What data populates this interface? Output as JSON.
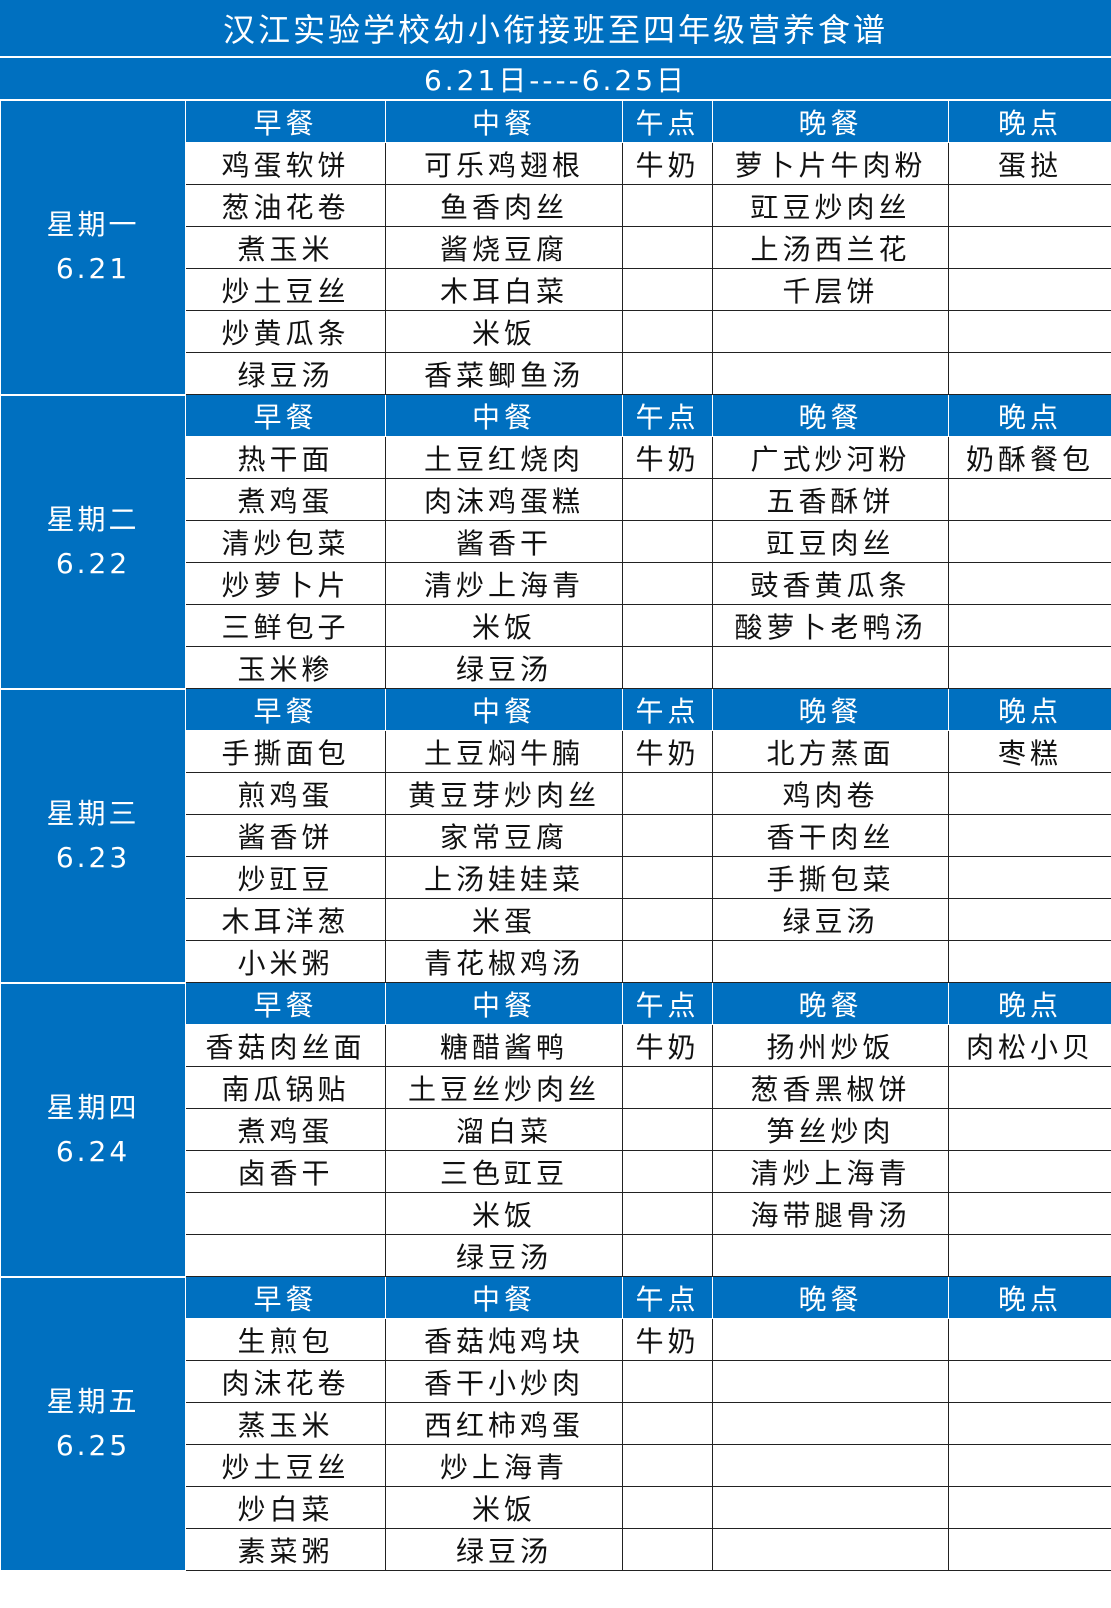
{
  "title": "汉江实验学校幼小衔接班至四年级营养食谱",
  "date_range": "6.21日----6.25日",
  "columns": [
    "早餐",
    "中餐",
    "午点",
    "晚餐",
    "晚点"
  ],
  "colors": {
    "header_blue": "#0070C0"
  },
  "days": [
    {
      "name": "星期一",
      "date": "6.21",
      "rows": [
        [
          "鸡蛋软饼",
          "可乐鸡翅根",
          "牛奶",
          "萝卜片牛肉粉",
          "蛋挞"
        ],
        [
          "葱油花卷",
          "鱼香肉丝",
          "",
          "豇豆炒肉丝",
          ""
        ],
        [
          "煮玉米",
          "酱烧豆腐",
          "",
          "上汤西兰花",
          ""
        ],
        [
          "炒土豆丝",
          "木耳白菜",
          "",
          "千层饼",
          ""
        ],
        [
          "炒黄瓜条",
          "米饭",
          "",
          "",
          ""
        ],
        [
          "绿豆汤",
          "香菜鲫鱼汤",
          "",
          "",
          ""
        ]
      ]
    },
    {
      "name": "星期二",
      "date": "6.22",
      "rows": [
        [
          "热干面",
          "土豆红烧肉",
          "牛奶",
          "广式炒河粉",
          "奶酥餐包"
        ],
        [
          "煮鸡蛋",
          "肉沫鸡蛋糕",
          "",
          "五香酥饼",
          ""
        ],
        [
          "清炒包菜",
          "酱香干",
          "",
          "豇豆肉丝",
          ""
        ],
        [
          "炒萝卜片",
          "清炒上海青",
          "",
          "豉香黄瓜条",
          ""
        ],
        [
          "三鲜包子",
          "米饭",
          "",
          "酸萝卜老鸭汤",
          ""
        ],
        [
          "玉米糁",
          "绿豆汤",
          "",
          "",
          ""
        ]
      ]
    },
    {
      "name": "星期三",
      "date": "6.23",
      "rows": [
        [
          "手撕面包",
          "土豆焖牛腩",
          "牛奶",
          "北方蒸面",
          "枣糕"
        ],
        [
          "煎鸡蛋",
          "黄豆芽炒肉丝",
          "",
          "鸡肉卷",
          ""
        ],
        [
          "酱香饼",
          "家常豆腐",
          "",
          "香干肉丝",
          ""
        ],
        [
          "炒豇豆",
          "上汤娃娃菜",
          "",
          "手撕包菜",
          ""
        ],
        [
          "木耳洋葱",
          "米蛋",
          "",
          "绿豆汤",
          ""
        ],
        [
          "小米粥",
          "青花椒鸡汤",
          "",
          "",
          ""
        ]
      ]
    },
    {
      "name": "星期四",
      "date": "6.24",
      "rows": [
        [
          "香菇肉丝面",
          "糖醋酱鸭",
          "牛奶",
          "扬州炒饭",
          "肉松小贝"
        ],
        [
          "南瓜锅贴",
          "土豆丝炒肉丝",
          "",
          "葱香黑椒饼",
          ""
        ],
        [
          "煮鸡蛋",
          "溜白菜",
          "",
          "笋丝炒肉",
          ""
        ],
        [
          "卤香干",
          "三色豇豆",
          "",
          "清炒上海青",
          ""
        ],
        [
          "",
          "米饭",
          "",
          "海带腿骨汤",
          ""
        ],
        [
          "",
          "绿豆汤",
          "",
          "",
          ""
        ]
      ]
    },
    {
      "name": "星期五",
      "date": "6.25",
      "rows": [
        [
          "生煎包",
          "香菇炖鸡块",
          "牛奶",
          "",
          ""
        ],
        [
          "肉沫花卷",
          "香干小炒肉",
          "",
          "",
          ""
        ],
        [
          "蒸玉米",
          "西红柿鸡蛋",
          "",
          "",
          ""
        ],
        [
          "炒土豆丝",
          "炒上海青",
          "",
          "",
          ""
        ],
        [
          "炒白菜",
          "米饭",
          "",
          "",
          ""
        ],
        [
          "素菜粥",
          "绿豆汤",
          "",
          "",
          ""
        ]
      ]
    }
  ]
}
